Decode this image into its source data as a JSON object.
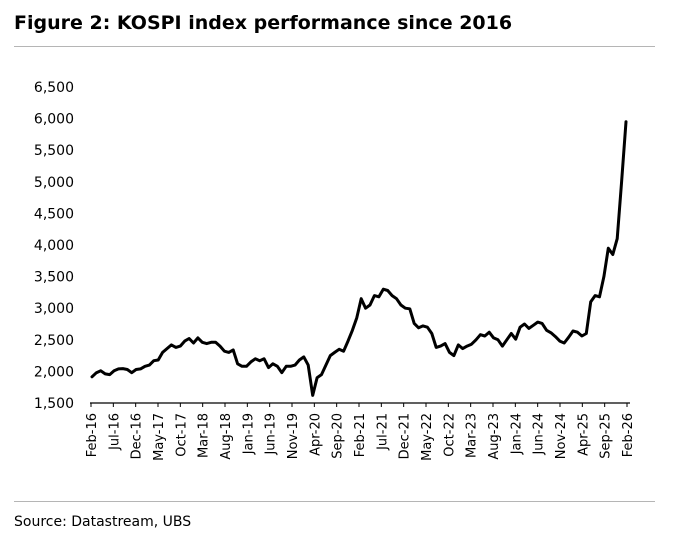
{
  "header": {
    "title": "Figure 2: KOSPI index performance since 2016"
  },
  "footer": {
    "source": "Source: Datastream, UBS"
  },
  "chart_data": {
    "type": "line",
    "title": "Figure 2: KOSPI index performance since 2016",
    "xlabel": "",
    "ylabel": "",
    "ylim": [
      1500,
      6500
    ],
    "ytick_labels": [
      "1,500",
      "2,000",
      "2,500",
      "3,000",
      "3,500",
      "4,000",
      "4,500",
      "5,000",
      "5,500",
      "6,000",
      "6,500"
    ],
    "xtick_labels": [
      "Feb-16",
      "Jul-16",
      "Dec-16",
      "May-17",
      "Oct-17",
      "Mar-18",
      "Aug-18",
      "Jan-19",
      "Jun-19",
      "Nov-19",
      "Apr-20",
      "Sep-20",
      "Feb-21",
      "Jul-21",
      "Dec-21",
      "May-22",
      "Oct-22",
      "Mar-23",
      "Aug-23",
      "Jan-24",
      "Jun-24",
      "Nov-24",
      "Apr-25",
      "Sep-25",
      "Feb-26"
    ],
    "grid": false,
    "line_color": "#000000",
    "series": [
      {
        "name": "KOSPI",
        "x_start": "Feb-16",
        "frequency": "monthly",
        "values": [
          1915,
          1980,
          2010,
          1960,
          1950,
          2010,
          2040,
          2045,
          2030,
          1980,
          2030,
          2040,
          2080,
          2100,
          2170,
          2180,
          2300,
          2360,
          2420,
          2380,
          2400,
          2480,
          2520,
          2450,
          2530,
          2460,
          2440,
          2460,
          2460,
          2400,
          2320,
          2300,
          2340,
          2120,
          2080,
          2080,
          2150,
          2200,
          2170,
          2200,
          2060,
          2120,
          2080,
          1980,
          2080,
          2080,
          2100,
          2180,
          2230,
          2100,
          1620,
          1900,
          1950,
          2100,
          2250,
          2300,
          2350,
          2320,
          2480,
          2650,
          2850,
          3150,
          3000,
          3050,
          3200,
          3180,
          3300,
          3280,
          3200,
          3150,
          3050,
          3000,
          2990,
          2760,
          2690,
          2720,
          2700,
          2600,
          2380,
          2400,
          2440,
          2300,
          2250,
          2420,
          2360,
          2400,
          2430,
          2500,
          2580,
          2560,
          2620,
          2530,
          2500,
          2400,
          2500,
          2600,
          2510,
          2700,
          2750,
          2680,
          2730,
          2780,
          2760,
          2650,
          2610,
          2550,
          2480,
          2450,
          2540,
          2640,
          2620,
          2560,
          2600,
          3100,
          3200,
          3180,
          3500,
          3950,
          3850,
          4100,
          5000,
          5950
        ]
      }
    ]
  }
}
